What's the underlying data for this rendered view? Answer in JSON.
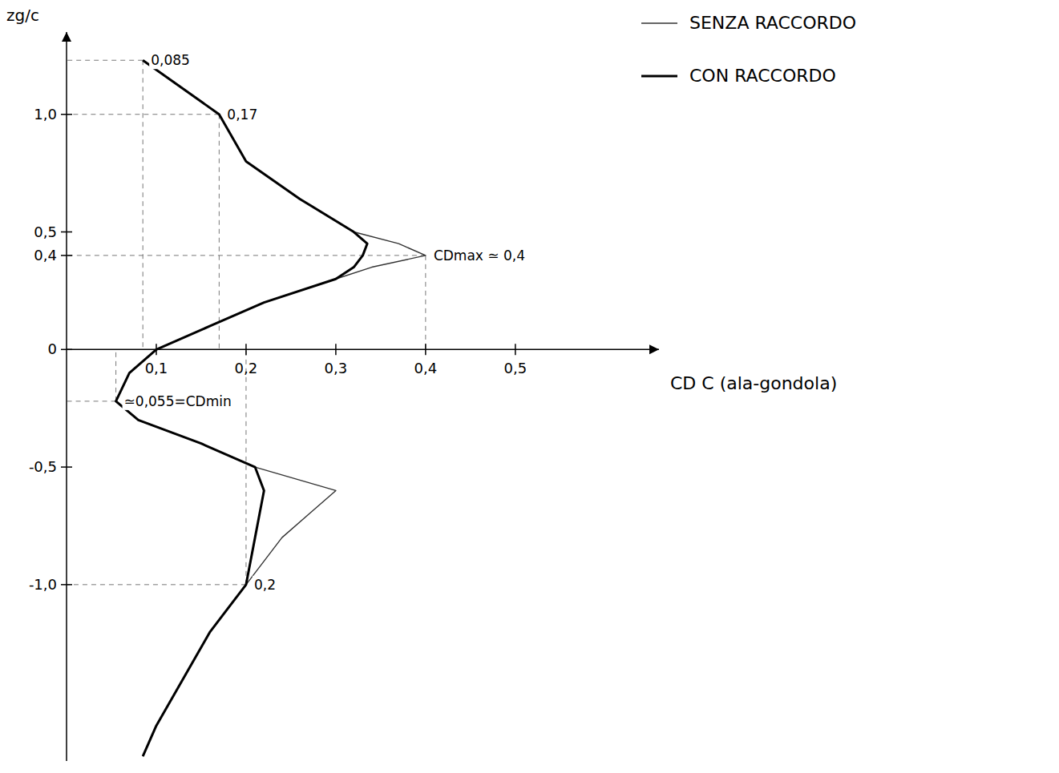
{
  "chart_data": {
    "type": "line",
    "x_label": "CD C (ala-gondola)",
    "y_label": "zg/c",
    "xlim": [
      0,
      0.66
    ],
    "ylim": [
      -1.75,
      1.35
    ],
    "xticks": [
      {
        "value": 0.1,
        "label": "0,1"
      },
      {
        "value": 0.2,
        "label": "0,2"
      },
      {
        "value": 0.3,
        "label": "0,3"
      },
      {
        "value": 0.4,
        "label": "0,4"
      },
      {
        "value": 0.5,
        "label": "0,5"
      }
    ],
    "yticks": [
      {
        "value": -1.0,
        "label": "-1,0"
      },
      {
        "value": -0.5,
        "label": "-0,5"
      },
      0,
      {
        "value": 0.4,
        "label": "0,4"
      },
      {
        "value": 0.5,
        "label": "0,5"
      },
      {
        "value": 1.0,
        "label": "1,0"
      }
    ],
    "grid": false,
    "legend": "top-right",
    "series": [
      {
        "name": "SENZA RACCORDO",
        "color": "#333333",
        "line_style": "solid",
        "x": [
          0.085,
          0.17,
          0.2,
          0.26,
          0.32,
          0.37,
          0.4,
          0.34,
          0.3,
          0.22,
          0.16,
          0.1,
          0.07,
          0.055,
          0.08,
          0.15,
          0.21,
          0.3,
          0.27,
          0.24,
          0.2,
          0.16,
          0.13,
          0.1,
          0.085
        ],
        "values": [
          1.23,
          1.0,
          0.8,
          0.64,
          0.5,
          0.45,
          0.4,
          0.35,
          0.3,
          0.2,
          0.1,
          0,
          -0.1,
          -0.22,
          -0.3,
          -0.4,
          -0.5,
          -0.6,
          -0.7,
          -0.8,
          -1.0,
          -1.2,
          -1.4,
          -1.6,
          -1.73
        ]
      },
      {
        "name": "CON RACCORDO",
        "color": "#000000",
        "line_style": "solid",
        "x": [
          0.085,
          0.17,
          0.2,
          0.26,
          0.32,
          0.335,
          0.33,
          0.32,
          0.3,
          0.22,
          0.16,
          0.1,
          0.07,
          0.055,
          0.08,
          0.15,
          0.21,
          0.22,
          0.215,
          0.21,
          0.2,
          0.16,
          0.13,
          0.1,
          0.085
        ],
        "values": [
          1.23,
          1.0,
          0.8,
          0.64,
          0.5,
          0.45,
          0.4,
          0.35,
          0.3,
          0.2,
          0.1,
          0,
          -0.1,
          -0.22,
          -0.3,
          -0.4,
          -0.5,
          -0.6,
          -0.7,
          -0.8,
          -1.0,
          -1.2,
          -1.4,
          -1.6,
          -1.73
        ]
      }
    ],
    "annotations": [
      {
        "text": "0,085",
        "x": 0.085,
        "y": 1.23
      },
      {
        "text": "0,17",
        "x": 0.17,
        "y": 1.0
      },
      {
        "text": "CDmax ≃ 0,4",
        "x": 0.4,
        "y": 0.4
      },
      {
        "text": "≃0,055=CDmin",
        "x": 0.055,
        "y": -0.22
      },
      {
        "text": "0,2",
        "x": 0.2,
        "y": -1.0
      }
    ]
  }
}
